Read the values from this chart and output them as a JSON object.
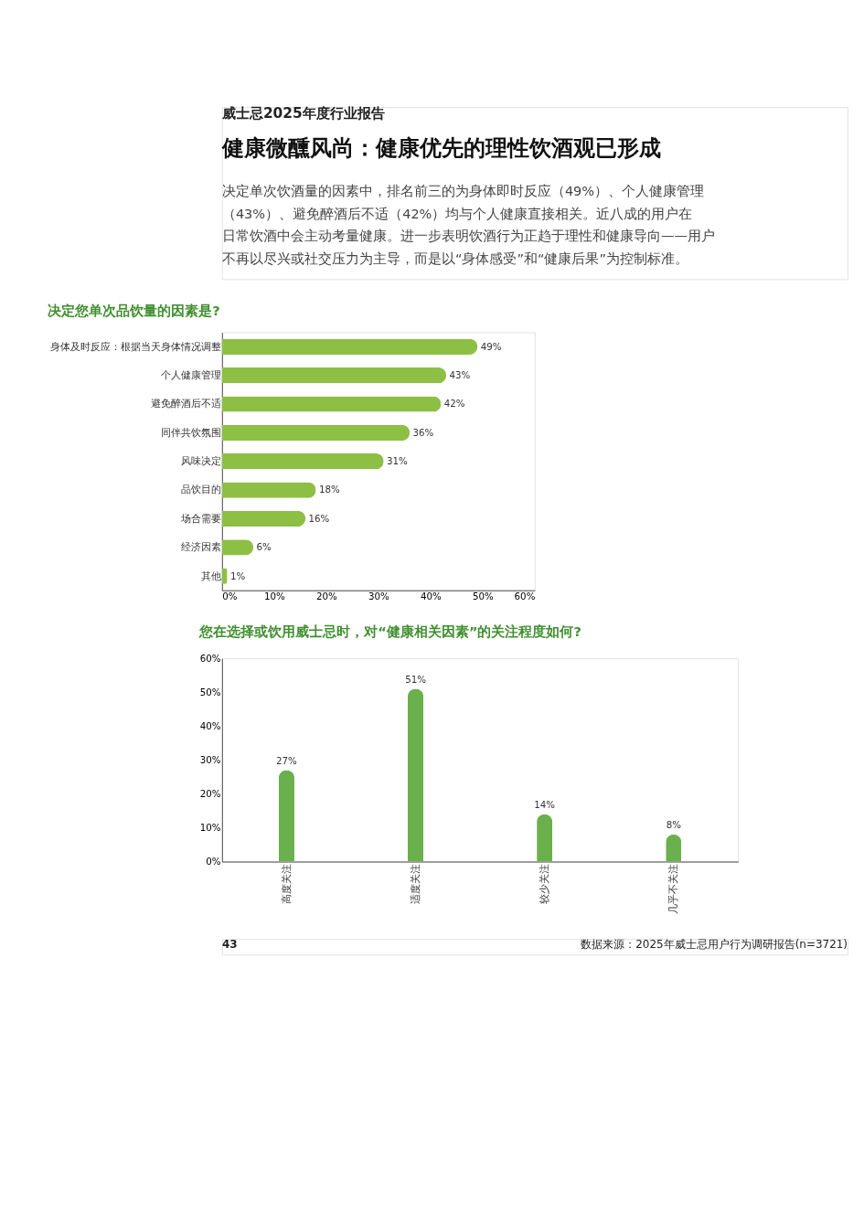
{
  "chart_data": [
    {
      "type": "bar",
      "orientation": "horizontal",
      "title": "决定您单次品饮量的因素是?",
      "annotations": [
        "威士忌2025年度行业报告",
        "健康微醺风尚：健康优先的理性饮酒观已形成",
        "决定单次饮酒量的因素中，排名前三的为身体即时反应（49%）、个人健康管理（43%）、避免醉酒后不适（42%）均与个人健康直接相关。近八成的用户在日常饮酒中会主动考量健康。进一步表明饮酒行为正趋于理性和健康导向——用户不再以尽兴或社交压力为主导，而是以“身体感受”和“健康后果”为控制标准。"
      ],
      "categories": [
        "身体及时反应：根据当天身体情况调整",
        "个人健康管理",
        "避免醉酒后不适",
        "同伴共饮氛围",
        "风味决定",
        "品饮目的",
        "场合需要",
        "经济因素",
        "其他"
      ],
      "values": [
        49,
        43,
        42,
        36,
        31,
        18,
        16,
        6,
        1
      ],
      "value_labels": [
        "49%",
        "43%",
        "42%",
        "36%",
        "31%",
        "18%",
        "16%",
        "6%",
        "1%"
      ],
      "color": "#8dbf45",
      "xlim": [
        0,
        60
      ],
      "xticks": [
        {
          "value": 0,
          "label": "0%"
        },
        {
          "value": 10,
          "label": "10%"
        },
        {
          "value": 20,
          "label": "20%"
        },
        {
          "value": 30,
          "label": "30%"
        },
        {
          "value": 40,
          "label": "40%"
        },
        {
          "value": 50,
          "label": "50%"
        },
        {
          "value": 60,
          "label": "60%"
        }
      ]
    },
    {
      "type": "bar",
      "title": "您在选择或饮用威士忌时，对“健康相关因素”的关注程度如何?",
      "annotations": [
        "43",
        "数据来源：2025年威士忌用户行为调研报告(n=3721)"
      ],
      "categories": [
        "高度关注",
        "适度关注",
        "较少关注",
        "几乎不关注"
      ],
      "values": [
        27,
        51,
        14,
        8
      ],
      "value_labels": [
        "27%",
        "51%",
        "14%",
        "8%"
      ],
      "color": "#6ab04c",
      "ylim": [
        0,
        60
      ],
      "yticks": [
        {
          "value": 0,
          "label": "0%"
        },
        {
          "value": 10,
          "label": "10%"
        },
        {
          "value": 20,
          "label": "20%"
        },
        {
          "value": 30,
          "label": "30%"
        },
        {
          "value": 40,
          "label": "40%"
        },
        {
          "value": 50,
          "label": "50%"
        },
        {
          "value": 60,
          "label": "60%"
        }
      ]
    }
  ]
}
